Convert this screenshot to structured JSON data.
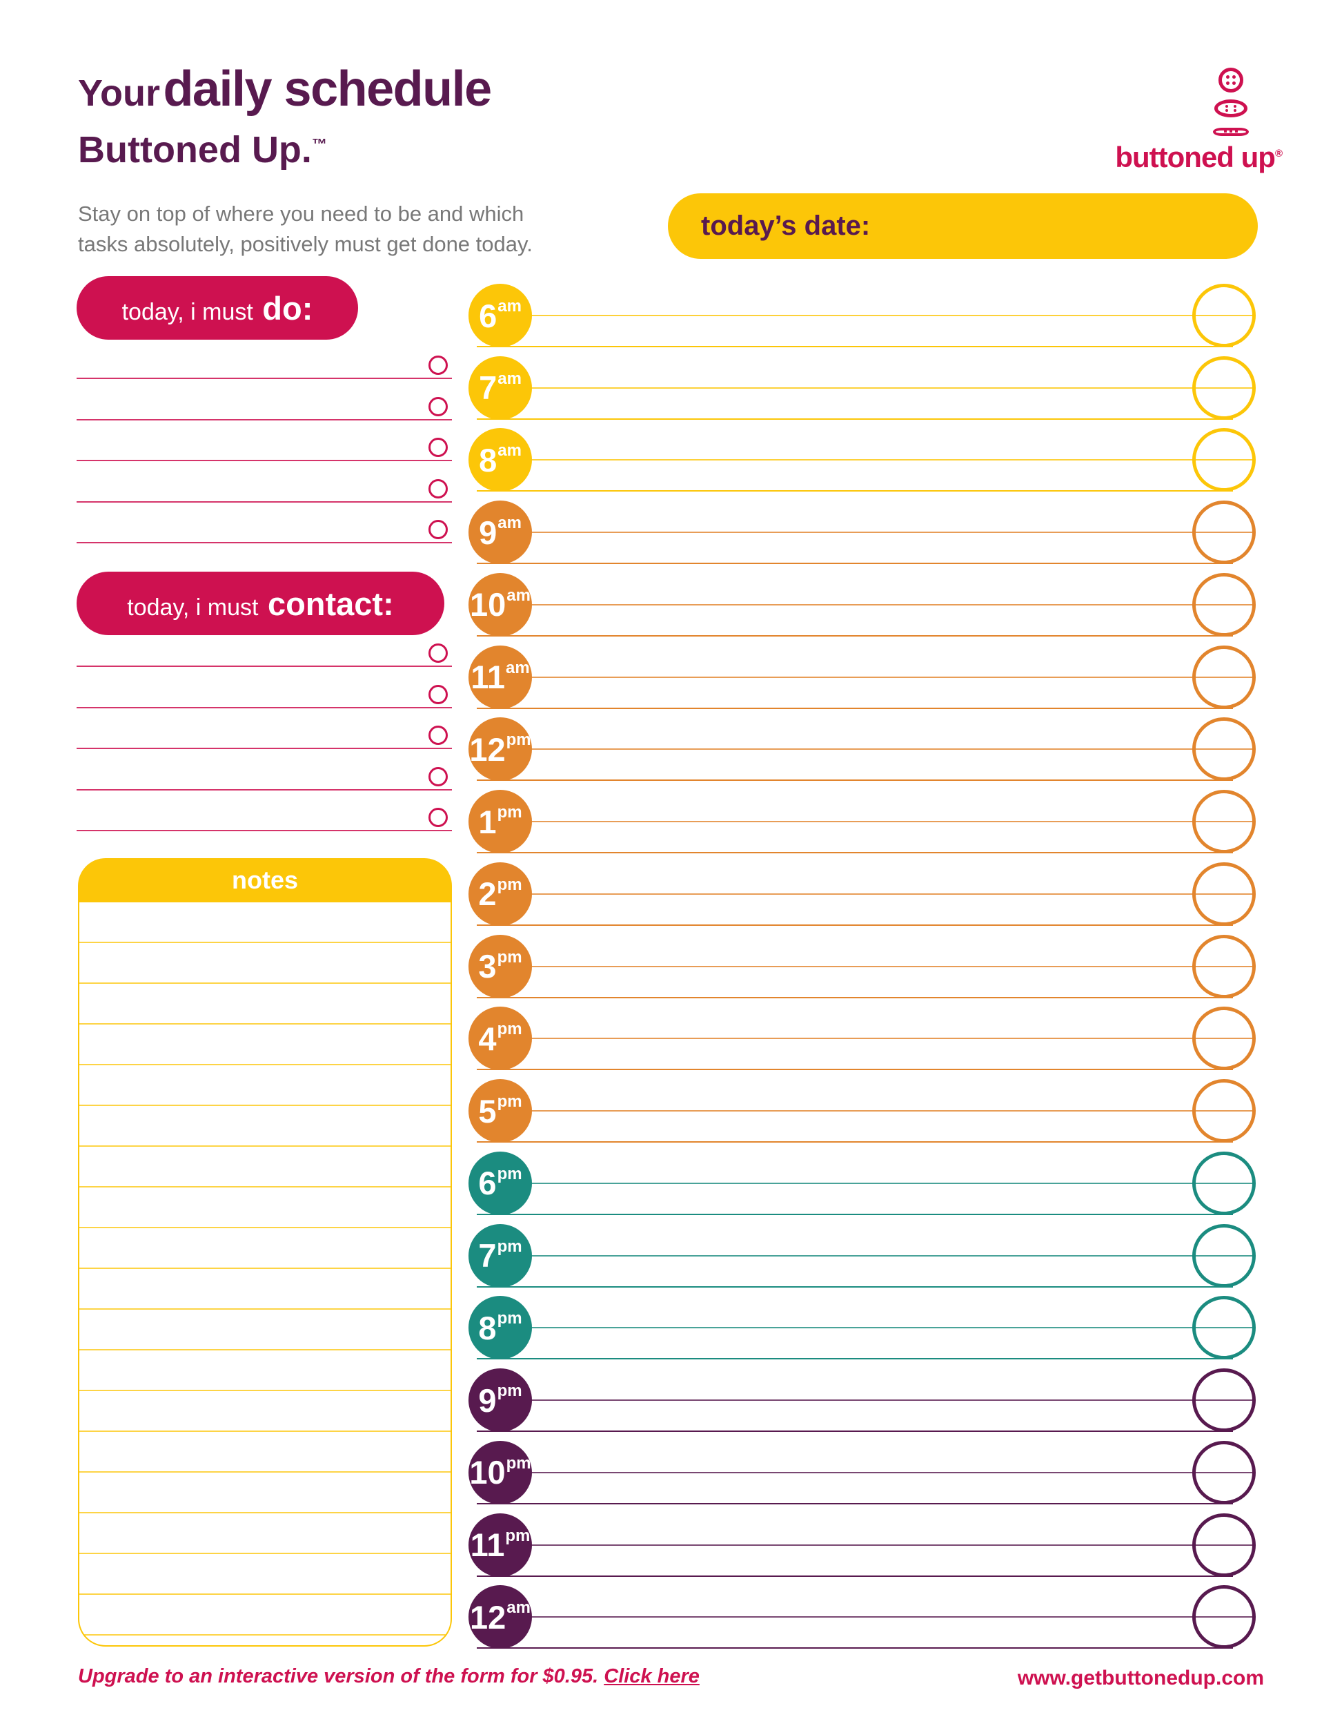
{
  "header": {
    "title_prefix": "Your",
    "title_main": "daily schedule",
    "brand_line": "Buttoned Up.",
    "brand_tm": "™",
    "subtitle_line1": "Stay on top of where you need to be and which",
    "subtitle_line2": "tasks absolutely, positively must get done today.",
    "logo_text": "buttoned up",
    "logo_reg": "®"
  },
  "date_bar": {
    "label": "today’s date:",
    "value": ""
  },
  "todo_section": {
    "title_prefix": "today, i must",
    "title_emphasis": "do:",
    "items": [
      "",
      "",
      "",
      "",
      ""
    ]
  },
  "contact_section": {
    "title_prefix": "today, i must",
    "title_emphasis": "contact:",
    "items": [
      "",
      "",
      "",
      "",
      ""
    ]
  },
  "notes_section": {
    "title": "notes",
    "lines": 18
  },
  "schedule": {
    "times": [
      {
        "hour": "6",
        "meridiem": "am",
        "group": "yellow",
        "entry": ""
      },
      {
        "hour": "7",
        "meridiem": "am",
        "group": "yellow",
        "entry": ""
      },
      {
        "hour": "8",
        "meridiem": "am",
        "group": "yellow",
        "entry": ""
      },
      {
        "hour": "9",
        "meridiem": "am",
        "group": "orange",
        "entry": ""
      },
      {
        "hour": "10",
        "meridiem": "am",
        "group": "orange",
        "entry": ""
      },
      {
        "hour": "11",
        "meridiem": "am",
        "group": "orange",
        "entry": ""
      },
      {
        "hour": "12",
        "meridiem": "pm",
        "group": "orange",
        "entry": ""
      },
      {
        "hour": "1",
        "meridiem": "pm",
        "group": "orange",
        "entry": ""
      },
      {
        "hour": "2",
        "meridiem": "pm",
        "group": "orange",
        "entry": ""
      },
      {
        "hour": "3",
        "meridiem": "pm",
        "group": "orange",
        "entry": ""
      },
      {
        "hour": "4",
        "meridiem": "pm",
        "group": "orange",
        "entry": ""
      },
      {
        "hour": "5",
        "meridiem": "pm",
        "group": "orange",
        "entry": ""
      },
      {
        "hour": "6",
        "meridiem": "pm",
        "group": "teal",
        "entry": ""
      },
      {
        "hour": "7",
        "meridiem": "pm",
        "group": "teal",
        "entry": ""
      },
      {
        "hour": "8",
        "meridiem": "pm",
        "group": "teal",
        "entry": ""
      },
      {
        "hour": "9",
        "meridiem": "pm",
        "group": "purple",
        "entry": ""
      },
      {
        "hour": "10",
        "meridiem": "pm",
        "group": "purple",
        "entry": ""
      },
      {
        "hour": "11",
        "meridiem": "pm",
        "group": "purple",
        "entry": ""
      },
      {
        "hour": "12",
        "meridiem": "am",
        "group": "purple",
        "entry": ""
      }
    ]
  },
  "footer": {
    "upgrade_text": "Upgrade to an interactive version of the form for $0.95.",
    "upgrade_link": "Click here",
    "website": "www.getbuttonedup.com"
  },
  "colors": {
    "purple": "#581a4f",
    "crimson": "#ce1150",
    "yellow": "#fcc608",
    "orange": "#e2852d",
    "teal": "#1b8c80",
    "gray": "#787878"
  }
}
